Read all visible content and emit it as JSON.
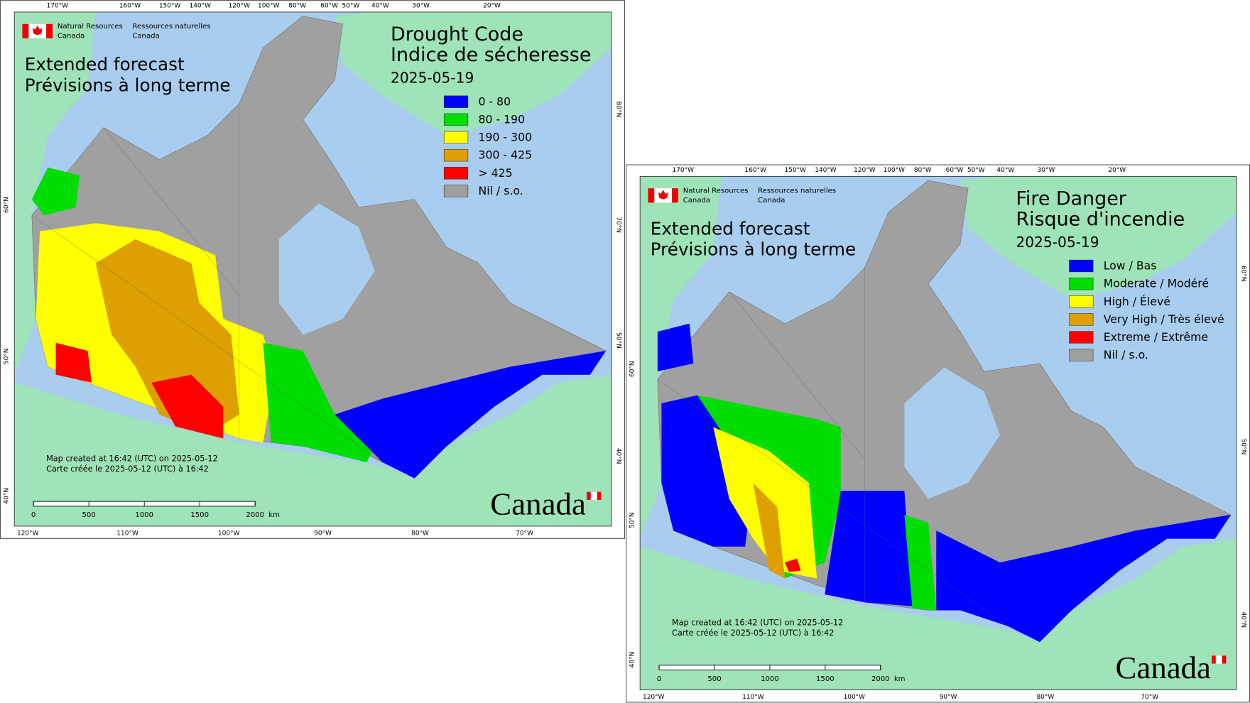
{
  "maps": [
    {
      "agency": [
        "Natural Resources",
        "Canada",
        "Ressources naturelles",
        "Canada"
      ],
      "subtitle": [
        "Extended forecast",
        "Prévisions à long terme"
      ],
      "title": [
        "Drought Code",
        "Indice de sécheresse"
      ],
      "date": "2025-05-19",
      "legend": [
        {
          "label": "0 - 80",
          "color": "#0000ff"
        },
        {
          "label": "80 - 190",
          "color": "#00dd00"
        },
        {
          "label": "190 - 300",
          "color": "#ffff00"
        },
        {
          "label": "300 - 425",
          "color": "#dda000"
        },
        {
          "label": "> 425",
          "color": "#ff0000"
        },
        {
          "label": "Nil / s.o.",
          "color": "#a0a0a0"
        }
      ],
      "footer": [
        "Map created at 16:42 (UTC) on 2025-05-12",
        "Carte créée le 2025-05-12 (UTC) à 16:42"
      ],
      "scale": [
        "0",
        "500",
        "1000",
        "1500",
        "2000"
      ],
      "scale_unit": "km",
      "wordmark": "Canada",
      "top_labels": [
        "170°W",
        "160°W",
        "150°W",
        "140°W",
        "120°W",
        "100°W",
        "80°W",
        "60°W",
        "50°W",
        "40°W",
        "30°W",
        "20°W"
      ],
      "bottom_labels": [
        "120°W",
        "110°W",
        "100°W",
        "90°W",
        "80°W",
        "70°W"
      ],
      "left_labels": [
        "60°N",
        "50°N",
        "40°N"
      ],
      "right_labels": [
        "80°N",
        "70°N",
        "50°N",
        "40°N"
      ]
    },
    {
      "agency": [
        "Natural Resources",
        "Canada",
        "Ressources naturelles",
        "Canada"
      ],
      "subtitle": [
        "Extended forecast",
        "Prévisions à long terme"
      ],
      "title": [
        "Fire Danger",
        "Risque d'incendie"
      ],
      "date": "2025-05-19",
      "legend": [
        {
          "label": "Low / Bas",
          "color": "#0000ff"
        },
        {
          "label": "Moderate / Modéré",
          "color": "#00dd00"
        },
        {
          "label": "High / Élevé",
          "color": "#ffff00"
        },
        {
          "label": "Very High / Très élevé",
          "color": "#dda000"
        },
        {
          "label": "Extreme / Extrême",
          "color": "#ff0000"
        },
        {
          "label": "Nil / s.o.",
          "color": "#a0a0a0"
        }
      ],
      "footer": [
        "Map created at 16:42 (UTC) on 2025-05-12",
        "Carte créée le 2025-05-12 (UTC) à 16:42"
      ],
      "scale": [
        "0",
        "500",
        "1000",
        "1500",
        "2000"
      ],
      "scale_unit": "km",
      "wordmark": "Canada",
      "top_labels": [
        "170°W",
        "160°W",
        "150°W",
        "140°W",
        "120°W",
        "100°W",
        "80°W",
        "60°W",
        "50°W",
        "40°W",
        "30°W",
        "20°W"
      ],
      "bottom_labels": [
        "120°W",
        "110°W",
        "100°W",
        "90°W",
        "80°W",
        "70°W"
      ],
      "left_labels": [
        "60°N",
        "50°N",
        "40°N"
      ],
      "right_labels": [
        "60°N",
        "50°N",
        "40°N"
      ]
    }
  ]
}
